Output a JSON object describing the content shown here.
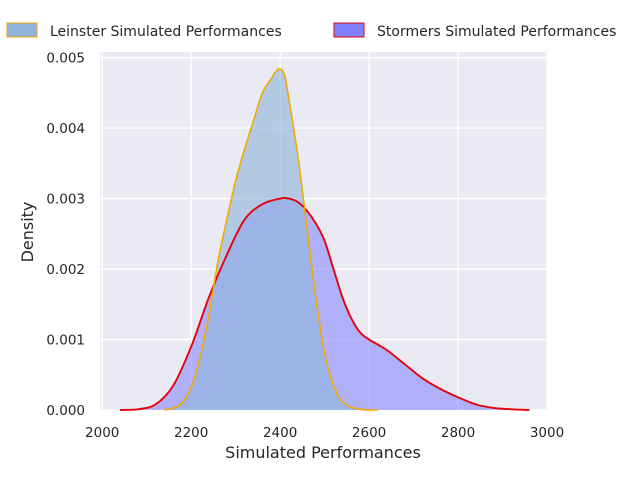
{
  "chart_data": {
    "type": "area",
    "title": "",
    "xlabel": "Simulated Performances",
    "ylabel": "Density",
    "xlim": [
      1995,
      3000
    ],
    "ylim": [
      0,
      0.00508
    ],
    "x_ticks": [
      2000,
      2200,
      2400,
      2600,
      2800,
      3000
    ],
    "x_tick_labels": [
      "2000",
      "2200",
      "2400",
      "2600",
      "2800",
      "3000"
    ],
    "y_ticks": [
      0,
      0.001,
      0.002,
      0.003,
      0.004,
      0.005
    ],
    "y_tick_labels": [
      "0.000",
      "0.001",
      "0.002",
      "0.003",
      "0.004",
      "0.005"
    ],
    "grid": true,
    "legend_position": "top",
    "series": [
      {
        "name": "Leinster Simulated Performances",
        "fill_color": "#8fb4dc",
        "line_color": "#f2a900",
        "x": [
          2140,
          2160,
          2180,
          2200,
          2220,
          2240,
          2260,
          2280,
          2300,
          2320,
          2340,
          2360,
          2380,
          2390,
          2400,
          2410,
          2420,
          2440,
          2460,
          2480,
          2500,
          2520,
          2540,
          2560,
          2580,
          2600,
          2620
        ],
        "y": [
          0,
          3e-05,
          0.0001,
          0.00032,
          0.00075,
          0.00135,
          0.0021,
          0.0027,
          0.00325,
          0.0037,
          0.0041,
          0.0045,
          0.0047,
          0.0048,
          0.00484,
          0.00475,
          0.0044,
          0.0036,
          0.0026,
          0.0016,
          0.0008,
          0.00035,
          0.00012,
          4e-05,
          1e-05,
          0,
          0
        ]
      },
      {
        "name": "Stormers Simulated Performances",
        "fill_color": "#8080ff",
        "line_color": "#e8000b",
        "x": [
          2040,
          2080,
          2120,
          2160,
          2200,
          2240,
          2280,
          2320,
          2360,
          2400,
          2420,
          2440,
          2460,
          2480,
          2500,
          2520,
          2540,
          2560,
          2580,
          2600,
          2640,
          2680,
          2720,
          2760,
          2800,
          2840,
          2880,
          2920,
          2960
        ],
        "y": [
          0,
          1e-05,
          8e-05,
          0.00035,
          0.0009,
          0.0016,
          0.0022,
          0.0027,
          0.00292,
          0.003,
          0.003,
          0.00295,
          0.00283,
          0.00265,
          0.0024,
          0.002,
          0.0016,
          0.0013,
          0.0011,
          0.001,
          0.00085,
          0.00065,
          0.00045,
          0.0003,
          0.00018,
          8e-05,
          3e-05,
          1e-05,
          0
        ]
      }
    ]
  }
}
